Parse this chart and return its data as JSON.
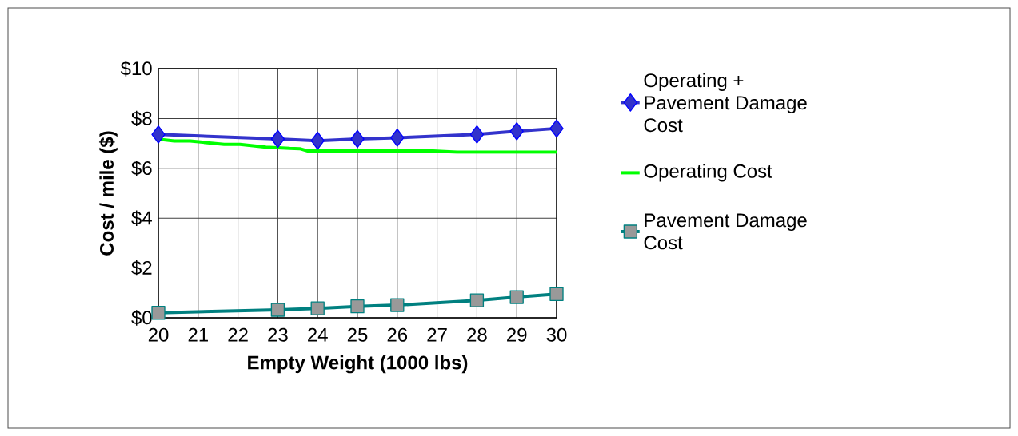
{
  "chart_data": {
    "type": "line",
    "xlabel": "Empty Weight (1000 lbs)",
    "ylabel": "Cost / mile ($)",
    "xlim": [
      20,
      30
    ],
    "xticks": [
      20,
      21,
      22,
      23,
      24,
      25,
      26,
      27,
      28,
      29,
      30
    ],
    "ylim": [
      0,
      10
    ],
    "yticks": [
      {
        "value": 0,
        "label": "$0"
      },
      {
        "value": 2,
        "label": "$2"
      },
      {
        "value": 4,
        "label": "$4"
      },
      {
        "value": 6,
        "label": "$6"
      },
      {
        "value": 8,
        "label": "$8"
      },
      {
        "value": 10,
        "label": "$10"
      }
    ],
    "grid": true,
    "legend": "right",
    "series": [
      {
        "name": "Operating + Pavement Damage Cost",
        "color": "#3333cc",
        "marker": "diamond",
        "x": [
          20,
          23,
          24,
          25,
          26,
          28,
          29,
          30
        ],
        "values": [
          7.36,
          7.18,
          7.11,
          7.18,
          7.23,
          7.36,
          7.49,
          7.6
        ]
      },
      {
        "name": "Operating Cost",
        "color": "#00ff00",
        "marker": "none",
        "x": [
          20,
          20.4,
          20.8,
          21.65,
          22.05,
          22.7,
          23.3,
          23.55,
          23.75,
          26.9,
          27.5,
          30
        ],
        "values": [
          7.17,
          7.1,
          7.1,
          6.96,
          6.96,
          6.85,
          6.8,
          6.79,
          6.7,
          6.7,
          6.65,
          6.65
        ]
      },
      {
        "name": "Pavement Damage Cost",
        "color": "#008080",
        "marker": "square",
        "x": [
          20,
          23,
          24,
          25,
          26,
          28,
          29,
          30
        ],
        "values": [
          0.2,
          0.32,
          0.38,
          0.46,
          0.51,
          0.7,
          0.83,
          0.95
        ]
      }
    ]
  }
}
